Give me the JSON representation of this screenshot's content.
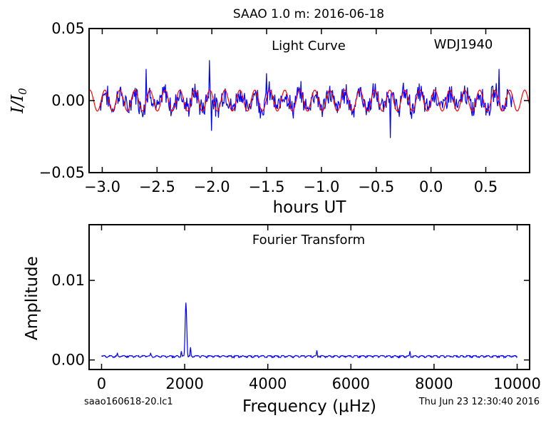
{
  "figure_title": "SAAO 1.0 m:  2016-06-18",
  "footer": {
    "left": "saao160618-20.lc1",
    "right": "Thu Jun 23 12:30:40 2016"
  },
  "colors": {
    "data": "#0000ff",
    "model": "#ff0000",
    "axes": "#000000"
  },
  "chart_data": [
    {
      "id": "light-curve",
      "type": "line",
      "annotations": [
        "Light Curve",
        "WDJ1940"
      ],
      "xlabel": "hours UT",
      "ylabel": "I/I",
      "ylabel_subscript": "0",
      "xlim": [
        -3.12,
        0.9
      ],
      "ylim": [
        -0.05,
        0.05
      ],
      "xticks": [
        -3.0,
        -2.5,
        -2.0,
        -1.5,
        -1.0,
        -0.5,
        0.0,
        0.5
      ],
      "xtick_labels": [
        "−3.0",
        "−2.5",
        "−2.0",
        "−1.5",
        "−1.0",
        "−0.5",
        "0.0",
        "0.5"
      ],
      "yticks": [
        -0.05,
        0.0,
        0.05
      ],
      "ytick_labels": [
        "−0.05",
        "0.00",
        "0.05"
      ],
      "series": [
        {
          "kind": "data",
          "x_start": -3.02,
          "x_end": 0.74,
          "n_points": 600,
          "noise_amplitude": 0.006,
          "notable_points": [
            {
              "x": -2.02,
              "y": 0.028
            },
            {
              "x": -2.0,
              "y": -0.021
            },
            {
              "x": -0.37,
              "y": -0.026
            },
            {
              "x": -1.5,
              "y": 0.019
            },
            {
              "x": 0.62,
              "y": 0.022
            },
            {
              "x": -2.6,
              "y": 0.022
            }
          ]
        },
        {
          "kind": "model",
          "x_start": -3.12,
          "x_end": 0.9,
          "amplitude": 0.0073,
          "frequency_uHz": 2030
        }
      ]
    },
    {
      "id": "fourier-transform",
      "type": "line",
      "annotations": [
        "Fourier Transform"
      ],
      "xlabel": "Frequency (μHz)",
      "ylabel": "Amplitude",
      "xlim": [
        -300,
        10300
      ],
      "ylim": [
        -0.0012,
        0.017
      ],
      "xticks": [
        0,
        2000,
        4000,
        6000,
        8000,
        10000
      ],
      "xtick_labels": [
        "0",
        "2000",
        "4000",
        "6000",
        "8000",
        "10000"
      ],
      "yticks": [
        0.0,
        0.01
      ],
      "ytick_labels": [
        "0.00",
        "0.01"
      ],
      "series": [
        {
          "kind": "amplitude-spectrum",
          "x_start": 0,
          "x_end": 10000,
          "step": 10,
          "baseline": 0.0005,
          "peaks": [
            {
              "x": 2030,
              "y": 0.0072
            },
            {
              "x": 2140,
              "y": 0.0016
            },
            {
              "x": 1920,
              "y": 0.0011
            },
            {
              "x": 5180,
              "y": 0.0012
            },
            {
              "x": 7420,
              "y": 0.0011
            },
            {
              "x": 380,
              "y": 0.0009
            },
            {
              "x": 1180,
              "y": 0.0009
            }
          ]
        }
      ]
    }
  ]
}
